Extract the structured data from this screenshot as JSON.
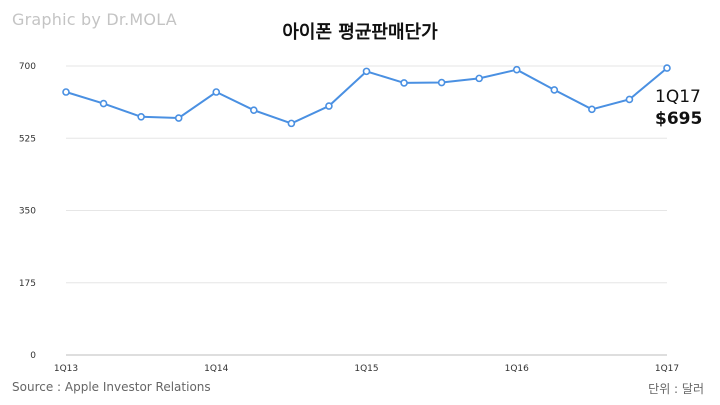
{
  "credit": "Graphic by Dr.MOLA",
  "footer": {
    "source": "Source : Apple Investor Relations",
    "unit": "단위 : 달러"
  },
  "chart_data": {
    "type": "line",
    "title": "아이폰 평균판매단가",
    "categories": [
      "1Q13",
      "2Q13",
      "3Q13",
      "4Q13",
      "1Q14",
      "2Q14",
      "3Q14",
      "4Q14",
      "1Q15",
      "2Q15",
      "3Q15",
      "4Q15",
      "1Q16",
      "2Q16",
      "3Q16",
      "4Q16",
      "1Q17"
    ],
    "x_tick_labels": [
      "1Q13",
      "1Q14",
      "1Q15",
      "1Q16",
      "1Q17"
    ],
    "y_ticks": [
      0,
      175,
      350,
      525,
      700
    ],
    "ylim": [
      0,
      700
    ],
    "grid": true,
    "series": [
      {
        "values": [
          637,
          609,
          577,
          574,
          637,
          593,
          561,
          603,
          687,
          659,
          660,
          670,
          691,
          642,
          595,
          619,
          695
        ]
      }
    ],
    "colors": {
      "line": "#4a90e2"
    },
    "annotation": {
      "label": "1Q17",
      "value_label": "$695"
    }
  }
}
